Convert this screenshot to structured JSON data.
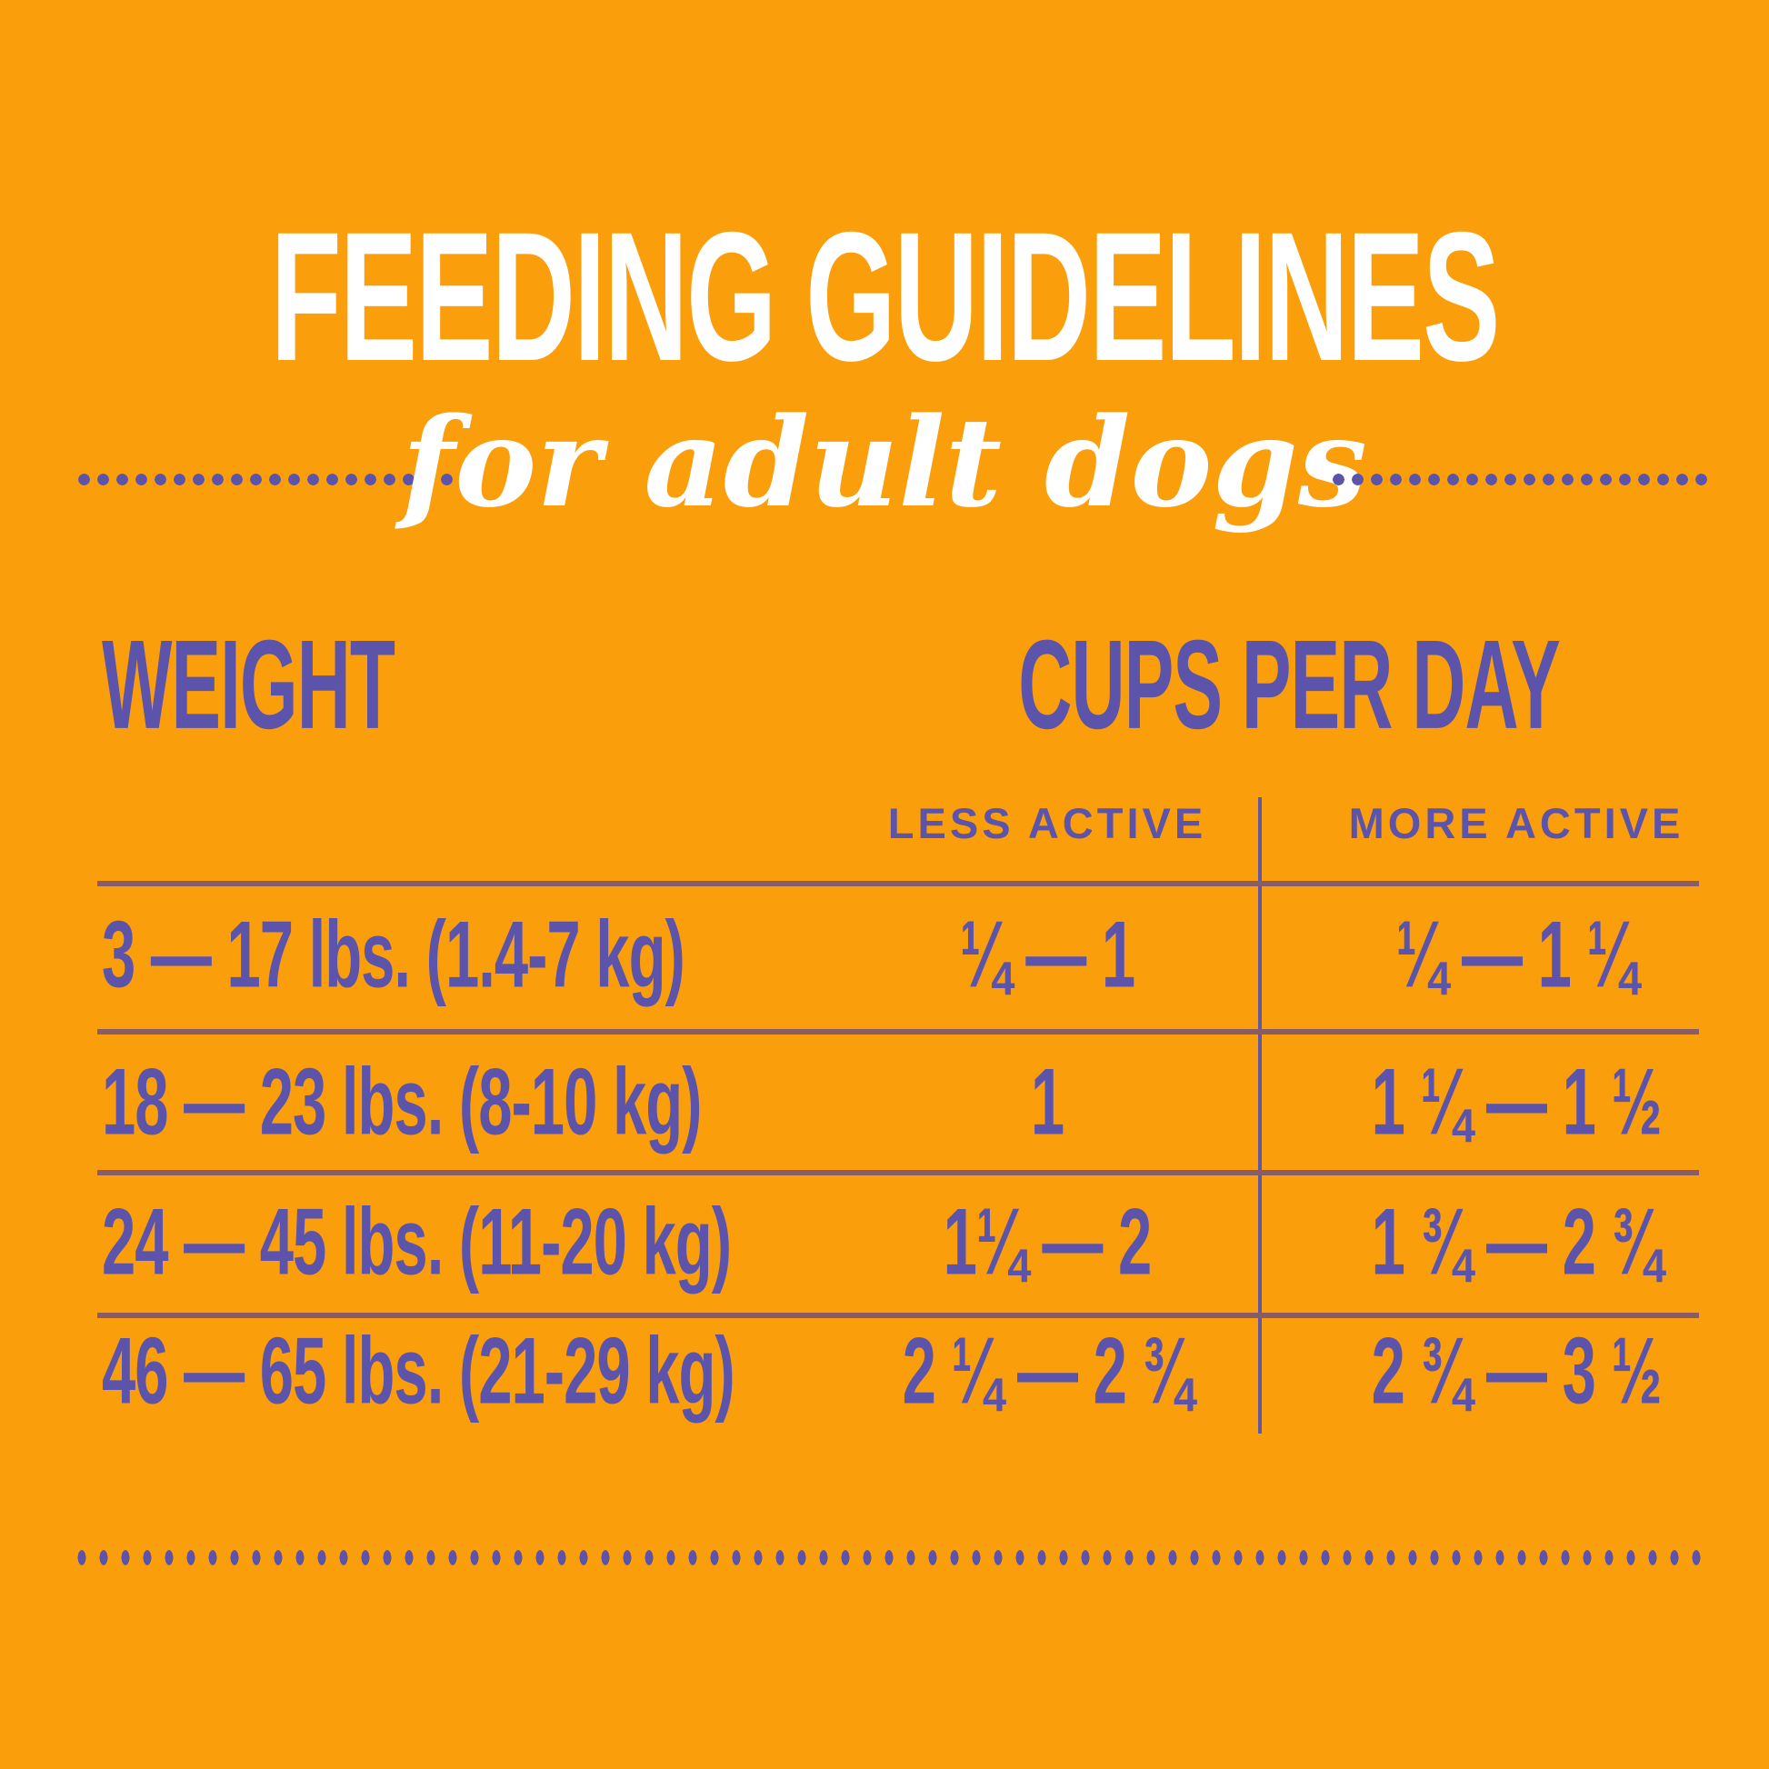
{
  "colors": {
    "background_orange": "#FB9E0B",
    "text_purple": "#5C54AB",
    "rule_mauve": "#8A5C66",
    "divider_purple": "#6058A4",
    "title_white": "#FFFFFF"
  },
  "header": {
    "title": "FEEDING GUIDELINES",
    "subtitle": "for adult dogs"
  },
  "chart_data": {
    "type": "table",
    "title": "FEEDING GUIDELINES",
    "subtitle": "for adult dogs",
    "row_header": "WEIGHT",
    "column_group_header": "CUPS PER DAY",
    "columns": [
      "LESS ACTIVE",
      "MORE ACTIVE"
    ],
    "rows": [
      {
        "weight": "3 — 17 lbs. (1.4-7 kg)",
        "less_active": "¼ — 1",
        "more_active": "¼ — 1 ¼"
      },
      {
        "weight": "18 — 23 lbs. (8-10 kg)",
        "less_active": "1",
        "more_active": "1 ¼ — 1 ½"
      },
      {
        "weight": "24 — 45 lbs. (11-20 kg)",
        "less_active": "1¼ — 2",
        "more_active": "1 ¾ — 2 ¾"
      },
      {
        "weight": "46 — 65 lbs. (21-29 kg)",
        "less_active": "2 ¼ — 2 ¾",
        "more_active": "2 ¾ — 3 ½"
      }
    ],
    "layout": {
      "grid_rules": 4,
      "legend_position": "none",
      "notes": "weight column left-aligned; two centered activity columns separated by vertical divider"
    }
  }
}
